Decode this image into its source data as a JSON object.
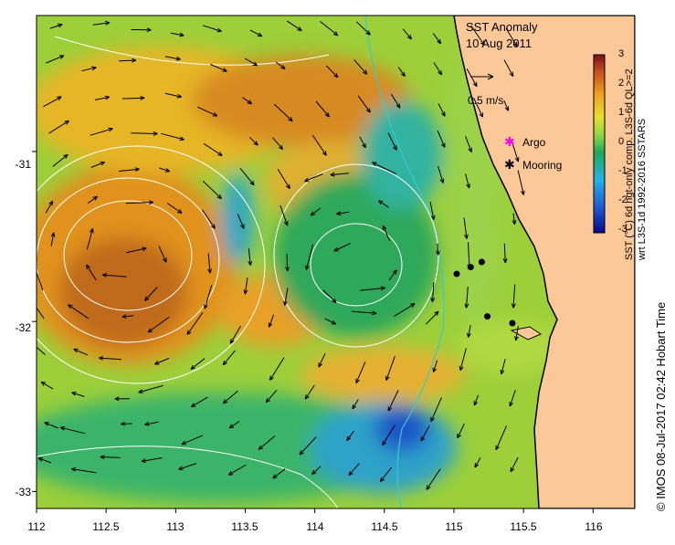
{
  "map": {
    "title": "SST Anomaly",
    "date": "10 Aug 2011",
    "velocity_scale_label": "0.5 m/s",
    "legend": {
      "items": [
        {
          "label": "Argo",
          "symbol": "magenta-star"
        },
        {
          "label": "Mooring",
          "symbol": "black-star"
        }
      ]
    },
    "colorbar": {
      "label_line1": "SST (°C) 6d ngt-only comp. L3S-6d QL>=2",
      "label_line2": "wrt L3S-1d 1992-2016 SSTARS",
      "ticks": [
        "3",
        "2",
        "1",
        "0",
        "-1",
        "-2",
        "-3"
      ],
      "range": [
        -3,
        3
      ]
    },
    "credit": "© IMOS 08-Jul-2017 02:42 Hobart Time",
    "axes": {
      "x_ticks": [
        "112",
        "112.5",
        "113",
        "113.5",
        "114",
        "114.5",
        "115",
        "115.5",
        "116"
      ],
      "y_ticks": [
        "-31",
        "-32",
        "-33"
      ],
      "x_range": [
        112,
        116.3
      ],
      "y_range": [
        -30.2,
        -33.1
      ]
    },
    "moorings": [
      {
        "lon": 115.02,
        "lat": -31.72
      },
      {
        "lon": 115.12,
        "lat": -31.68
      },
      {
        "lon": 115.2,
        "lat": -31.65
      },
      {
        "lon": 115.24,
        "lat": -31.97
      },
      {
        "lon": 115.42,
        "lat": -32.01
      }
    ],
    "colors": {
      "land": "#fcc897",
      "coast": "#000000",
      "contour": "#ffffff",
      "bathymetry": "#33cccc",
      "argo": "#ff00ff"
    }
  }
}
